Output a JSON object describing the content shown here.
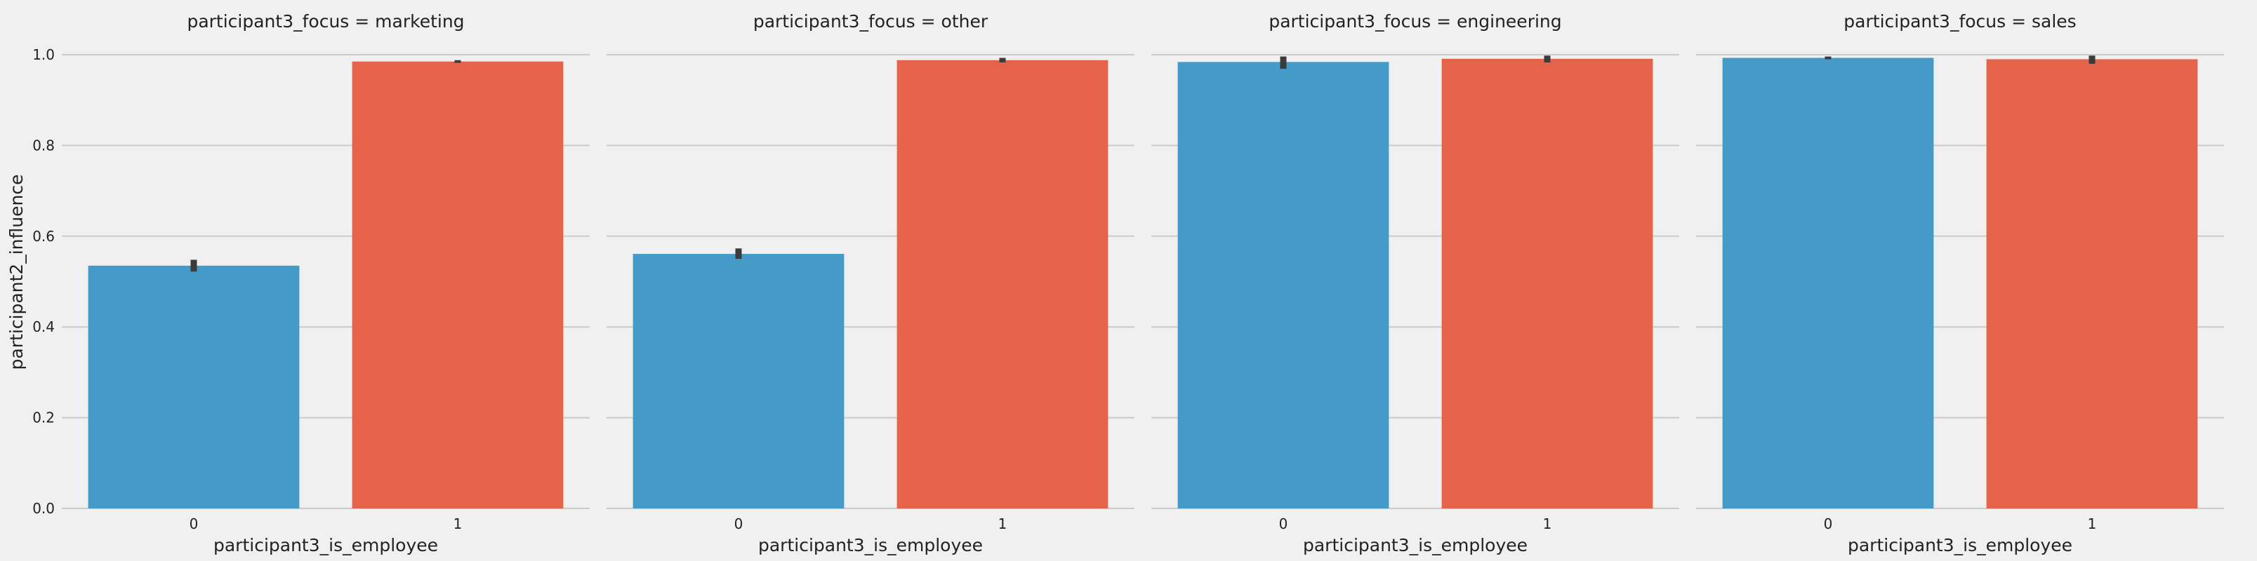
{
  "chart_data": {
    "type": "bar",
    "ylabel": "participant2_influence",
    "ylim": [
      0,
      1.0
    ],
    "yticks": [
      "0.0",
      "0.2",
      "0.4",
      "0.6",
      "0.8",
      "1.0"
    ],
    "ytick_values": [
      0.0,
      0.2,
      0.4,
      0.6,
      0.8,
      1.0
    ],
    "grid": "horizontal",
    "colors": {
      "0": "#459bc8",
      "1": "#e5634a",
      "background": "#f0f0f0",
      "grid": "#cbcbcb",
      "errorbar": "#3b3b3b"
    },
    "facets": [
      {
        "title": "participant3_focus = marketing",
        "xlabel": "participant3_is_employee",
        "categories": [
          "0",
          "1"
        ],
        "values": [
          0.535,
          0.985
        ],
        "ci": [
          [
            0.522,
            0.548
          ],
          [
            0.982,
            0.988
          ]
        ]
      },
      {
        "title": "participant3_focus = other",
        "xlabel": "participant3_is_employee",
        "categories": [
          "0",
          "1"
        ],
        "values": [
          0.561,
          0.988
        ],
        "ci": [
          [
            0.55,
            0.573
          ],
          [
            0.983,
            0.993
          ]
        ]
      },
      {
        "title": "participant3_focus = engineering",
        "xlabel": "participant3_is_employee",
        "categories": [
          "0",
          "1"
        ],
        "values": [
          0.984,
          0.991
        ],
        "ci": [
          [
            0.969,
            0.996
          ],
          [
            0.983,
            0.998
          ]
        ]
      },
      {
        "title": "participant3_focus = sales",
        "xlabel": "participant3_is_employee",
        "categories": [
          "0",
          "1"
        ],
        "values": [
          0.993,
          0.99
        ],
        "ci": [
          [
            0.99,
            0.996
          ],
          [
            0.98,
            0.998
          ]
        ]
      }
    ]
  }
}
